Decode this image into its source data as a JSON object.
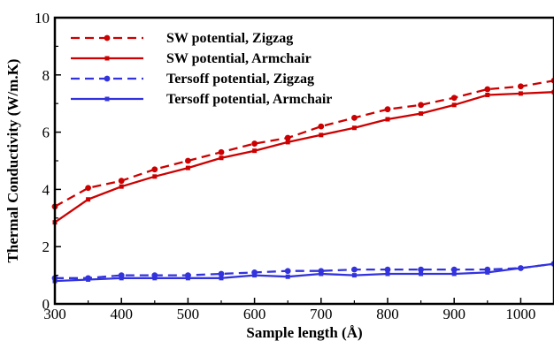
{
  "chart_data": {
    "type": "line",
    "title": "",
    "xlabel": "Sample length  (Å)",
    "ylabel": "Thermal Conductivity (W/m.K)",
    "xlim": [
      300,
      1050
    ],
    "ylim": [
      0,
      10
    ],
    "xticks": [
      "300",
      "400",
      "500",
      "600",
      "700",
      "800",
      "900",
      "1000"
    ],
    "yticks": [
      "0",
      "2",
      "4",
      "6",
      "8",
      "10"
    ],
    "x": [
      300,
      350,
      400,
      450,
      500,
      550,
      600,
      650,
      700,
      750,
      800,
      850,
      900,
      950,
      1000,
      1050
    ],
    "legend_position": "top-left",
    "grid": false,
    "series": [
      {
        "name": "SW potential, Zigzag",
        "color": "#cc0000",
        "line_style": "dashed",
        "marker": "circle",
        "values": [
          3.4,
          4.05,
          4.3,
          4.7,
          5.0,
          5.3,
          5.6,
          5.8,
          6.2,
          6.5,
          6.8,
          6.95,
          7.2,
          7.5,
          7.6,
          7.8
        ]
      },
      {
        "name": "SW potential, Armchair",
        "color": "#cc0000",
        "line_style": "solid",
        "marker": "square",
        "values": [
          2.85,
          3.65,
          4.1,
          4.45,
          4.75,
          5.1,
          5.35,
          5.65,
          5.9,
          6.15,
          6.45,
          6.65,
          6.95,
          7.3,
          7.35,
          7.4
        ]
      },
      {
        "name": "Tersoff potential, Zigzag",
        "color": "#3333dd",
        "line_style": "dashed",
        "marker": "circle",
        "values": [
          0.9,
          0.9,
          1.0,
          1.0,
          1.0,
          1.05,
          1.1,
          1.15,
          1.15,
          1.2,
          1.2,
          1.2,
          1.2,
          1.2,
          1.25,
          1.4
        ]
      },
      {
        "name": "Tersoff potential,  Armchair",
        "color": "#3333dd",
        "line_style": "solid",
        "marker": "square",
        "values": [
          0.8,
          0.85,
          0.9,
          0.9,
          0.9,
          0.9,
          1.0,
          0.95,
          1.05,
          1.0,
          1.05,
          1.05,
          1.05,
          1.1,
          1.25,
          1.4
        ]
      }
    ]
  }
}
